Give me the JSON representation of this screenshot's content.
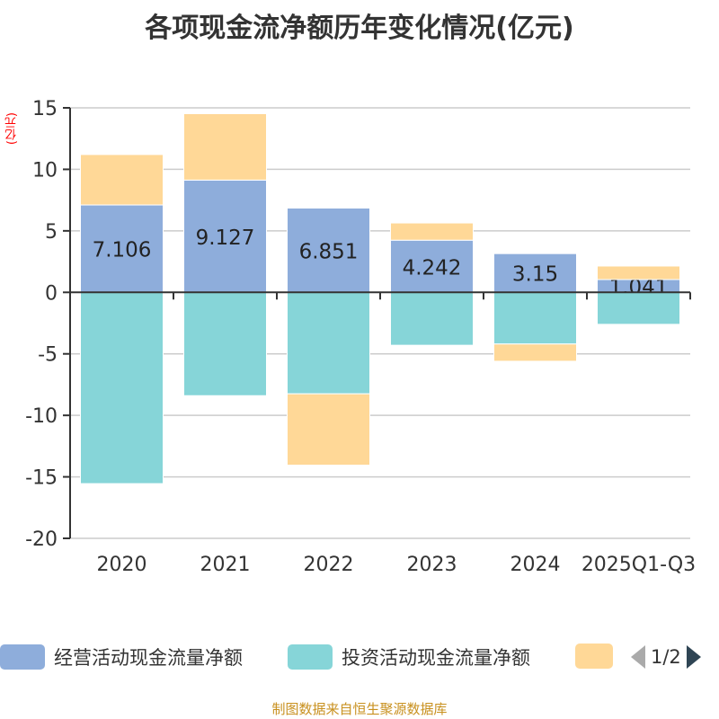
{
  "chart_data": {
    "type": "bar",
    "stacked": true,
    "title": "各项现金流净额历年变化情况(亿元)",
    "ylabel": "(亿元)",
    "categories": [
      "2020",
      "2021",
      "2022",
      "2023",
      "2024",
      "2025Q1-Q3"
    ],
    "ylim": [
      -20,
      15
    ],
    "yticks": [
      15,
      10,
      5,
      0,
      -5,
      -10,
      -15,
      -20
    ],
    "grid": true,
    "legend_position": "bottom",
    "series": [
      {
        "name": "经营活动现金流量净额",
        "color": "#8eaddb",
        "values": [
          7.106,
          9.127,
          6.851,
          4.242,
          3.15,
          1.041
        ],
        "labels": [
          "7.106",
          "9.127",
          "6.851",
          "4.242",
          "3.15",
          "1.041"
        ]
      },
      {
        "name": "投资活动现金流量净额",
        "color": "#86d5d8",
        "values": [
          -15.55,
          -8.4,
          -8.25,
          -4.3,
          -4.2,
          -2.6
        ]
      },
      {
        "name": "",
        "color": "#ffd897",
        "values": [
          4.1,
          5.4,
          -5.8,
          1.4,
          -1.4,
          1.1
        ]
      }
    ]
  },
  "legend": {
    "page": "1/2"
  },
  "source": "制图数据来自恒生聚源数据库"
}
